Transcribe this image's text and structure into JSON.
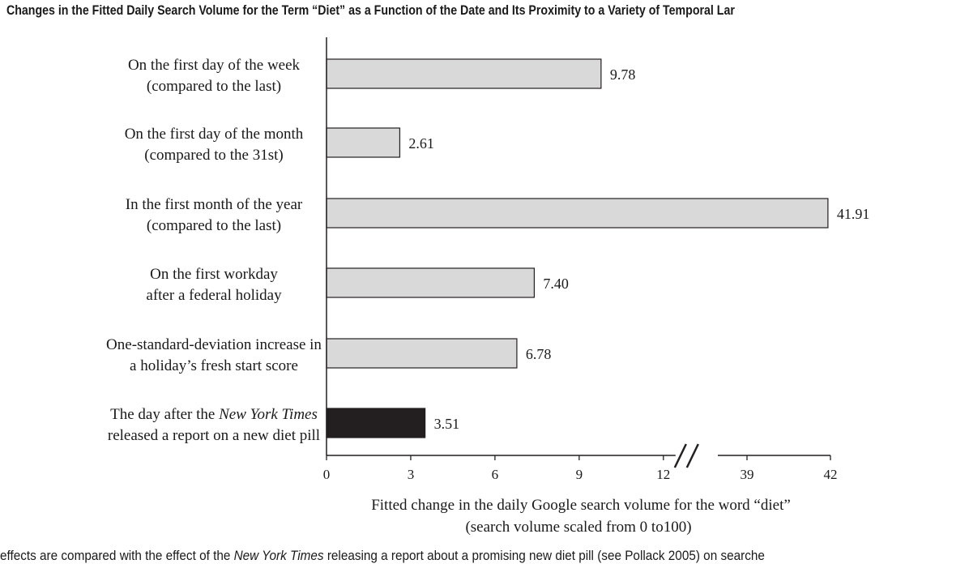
{
  "title": "Changes in the Fitted Daily Search Volume for the Term “Diet” as a Function of the Date and Its Proximity to a Variety of Temporal Lar",
  "caption": {
    "before": "effects are compared with the effect of the ",
    "italic": "New York Times",
    "after": " releasing a report about a promising new diet pill (see Pollack 2005) on searche"
  },
  "chart_data": {
    "type": "bar",
    "orientation": "horizontal",
    "categories": [
      {
        "line1": "On the first day of the week",
        "line2": "(compared to the last)"
      },
      {
        "line1": "On the first day of the month",
        "line2": "(compared to the 31st)"
      },
      {
        "line1": "In the first month of the year",
        "line2": "(compared to the last)"
      },
      {
        "line1": "On the first workday",
        "line2": "after a federal holiday"
      },
      {
        "line1": "One-standard-deviation increase in",
        "line2": "a holiday’s fresh start score"
      },
      {
        "line1_pre": "The day after the ",
        "line1_italic": "New York Times",
        "line2": "released a report on a new diet pill"
      }
    ],
    "values": [
      9.78,
      2.61,
      41.91,
      7.4,
      6.78,
      3.51
    ],
    "value_labels": [
      "9.78",
      "2.61",
      "41.91",
      "7.40",
      "6.78",
      "3.51"
    ],
    "bar_colors": [
      "#d9d9d9",
      "#d9d9d9",
      "#d9d9d9",
      "#d9d9d9",
      "#d9d9d9",
      "#231f20"
    ],
    "axis_break": [
      12,
      39
    ],
    "xticks": [
      "0",
      "3",
      "6",
      "9",
      "12",
      "39",
      "42"
    ],
    "xlabel_line1": "Fitted change in the daily Google search volume for the word “diet”",
    "xlabel_line2": "(search volume scaled from 0 to100)"
  }
}
